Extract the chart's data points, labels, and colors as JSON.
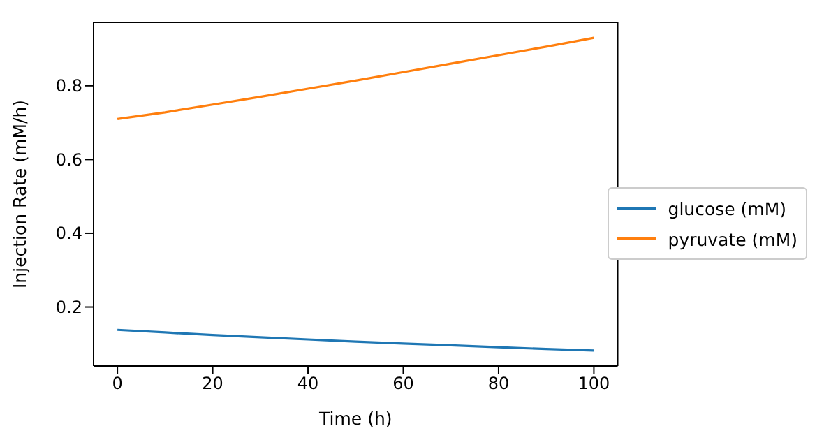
{
  "chart_data": {
    "type": "line",
    "xlabel": "Time (h)",
    "ylabel": "Injection Rate (mM/h)",
    "x": [
      0,
      10,
      20,
      30,
      40,
      50,
      60,
      70,
      80,
      90,
      100
    ],
    "series": [
      {
        "name": "glucose (mM)",
        "color": "#1f77b4",
        "values": [
          0.138,
          0.131,
          0.124,
          0.118,
          0.112,
          0.106,
          0.101,
          0.096,
          0.091,
          0.086,
          0.082
        ]
      },
      {
        "name": "pyruvate (mM)",
        "color": "#ff7f0e",
        "values": [
          0.71,
          0.728,
          0.749,
          0.77,
          0.792,
          0.814,
          0.837,
          0.86,
          0.883,
          0.906,
          0.93
        ]
      }
    ],
    "xlim": [
      -5,
      105
    ],
    "xticks": [
      0,
      20,
      40,
      60,
      80,
      100
    ],
    "ylim": [
      0.04,
      0.972
    ],
    "yticks": [
      0.2,
      0.4,
      0.6,
      0.8
    ],
    "grid": false,
    "legend": "center right",
    "marker": "none",
    "line_style": "solid"
  }
}
